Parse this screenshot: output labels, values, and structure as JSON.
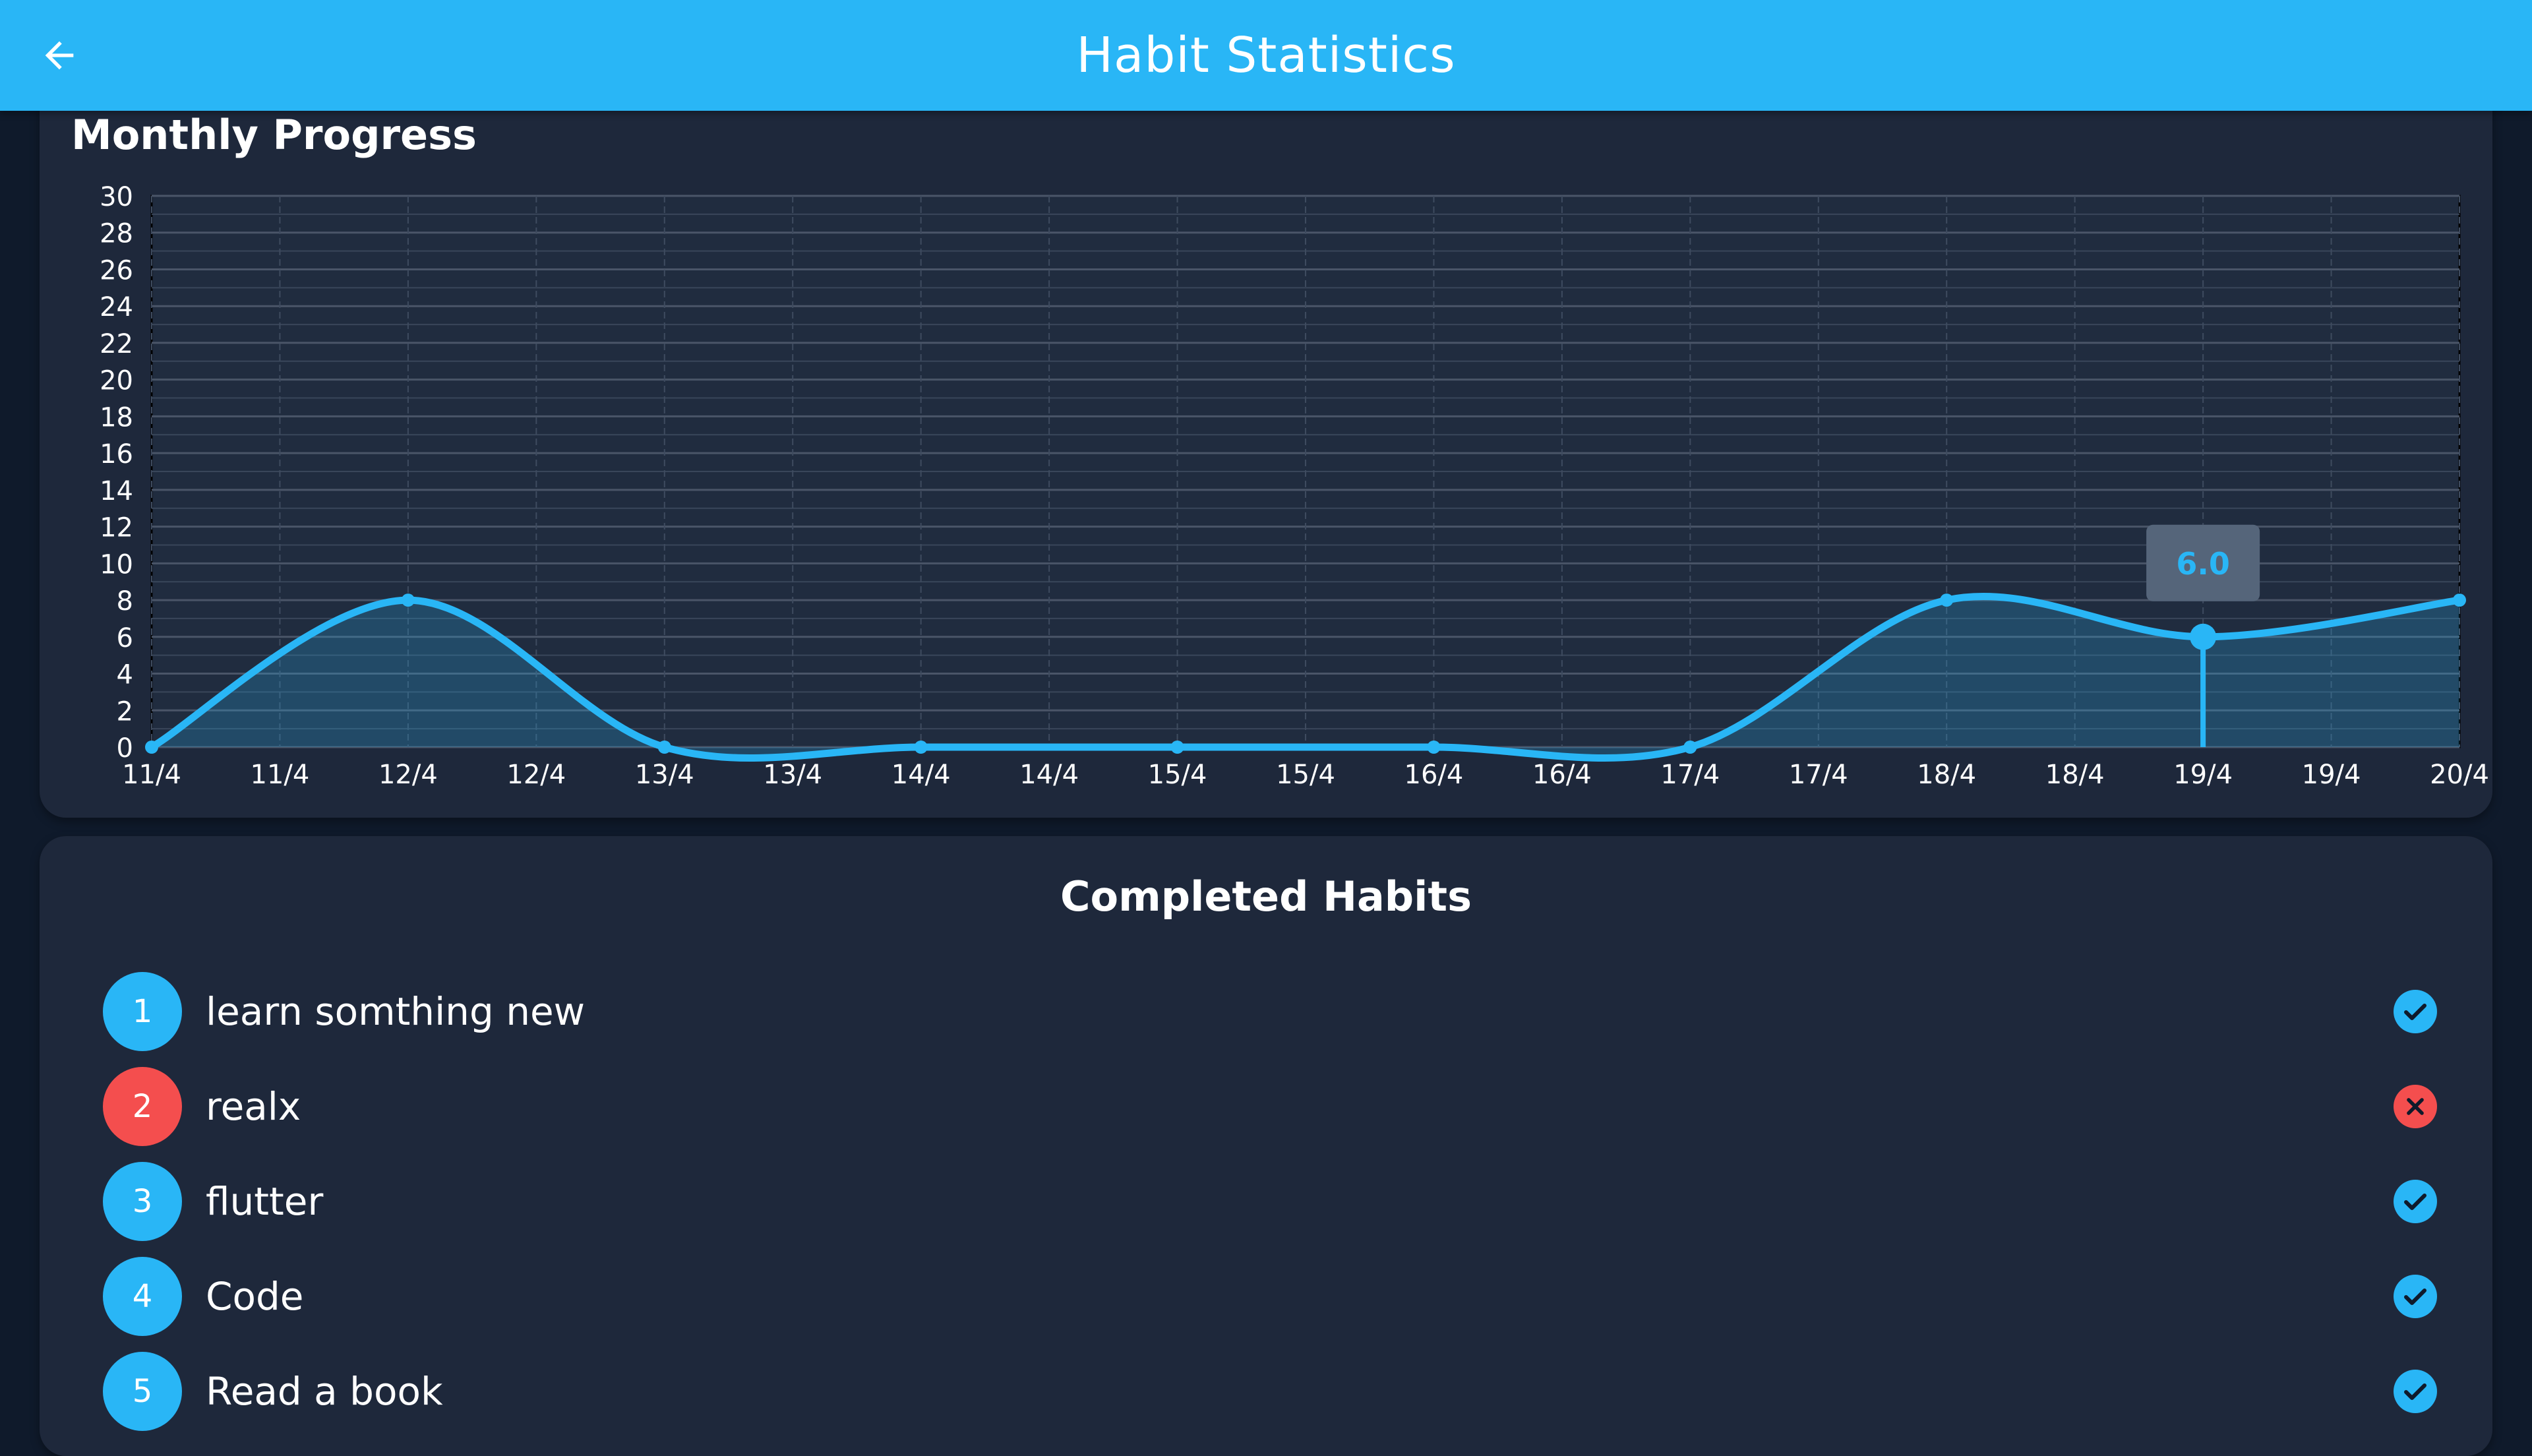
{
  "app_bar": {
    "title": "Habit Statistics",
    "background": "#29b6f6",
    "back_icon": "arrow-left-icon"
  },
  "chart_card": {
    "title": "Monthly Progress"
  },
  "chart_data": {
    "type": "area",
    "title": "Monthly Progress",
    "xlabel": "",
    "ylabel": "",
    "x_tick_labels": [
      "11/4",
      "11/4",
      "12/4",
      "12/4",
      "13/4",
      "13/4",
      "14/4",
      "14/4",
      "15/4",
      "15/4",
      "16/4",
      "16/4",
      "17/4",
      "17/4",
      "18/4",
      "18/4",
      "19/4",
      "19/4",
      "20/4"
    ],
    "y_ticks": [
      0,
      2,
      4,
      6,
      8,
      10,
      12,
      14,
      16,
      18,
      20,
      22,
      24,
      26,
      28,
      30
    ],
    "ylim": [
      0,
      30
    ],
    "x": [
      "11/4",
      "12/4",
      "13/4",
      "14/4",
      "15/4",
      "16/4",
      "17/4",
      "18/4",
      "19/4",
      "20/4"
    ],
    "values": [
      0,
      8,
      0,
      0,
      0,
      0,
      0,
      8,
      6,
      8
    ],
    "grid": true,
    "line_color": "#29b6f6",
    "tooltip": {
      "x": "19/4",
      "value": "6.0"
    }
  },
  "habits": {
    "title": "Completed Habits",
    "items": [
      {
        "number": "1",
        "name": "learn somthing new",
        "completed": true,
        "color": "#29b6f6",
        "status_icon": "check-icon"
      },
      {
        "number": "2",
        "name": "realx",
        "completed": false,
        "color": "#f44e4e",
        "status_icon": "close-icon"
      },
      {
        "number": "3",
        "name": "flutter",
        "completed": true,
        "color": "#29b6f6",
        "status_icon": "check-icon"
      },
      {
        "number": "4",
        "name": "Code",
        "completed": true,
        "color": "#29b6f6",
        "status_icon": "check-icon"
      },
      {
        "number": "5",
        "name": "Read a book",
        "completed": true,
        "color": "#29b6f6",
        "status_icon": "check-icon"
      }
    ]
  }
}
